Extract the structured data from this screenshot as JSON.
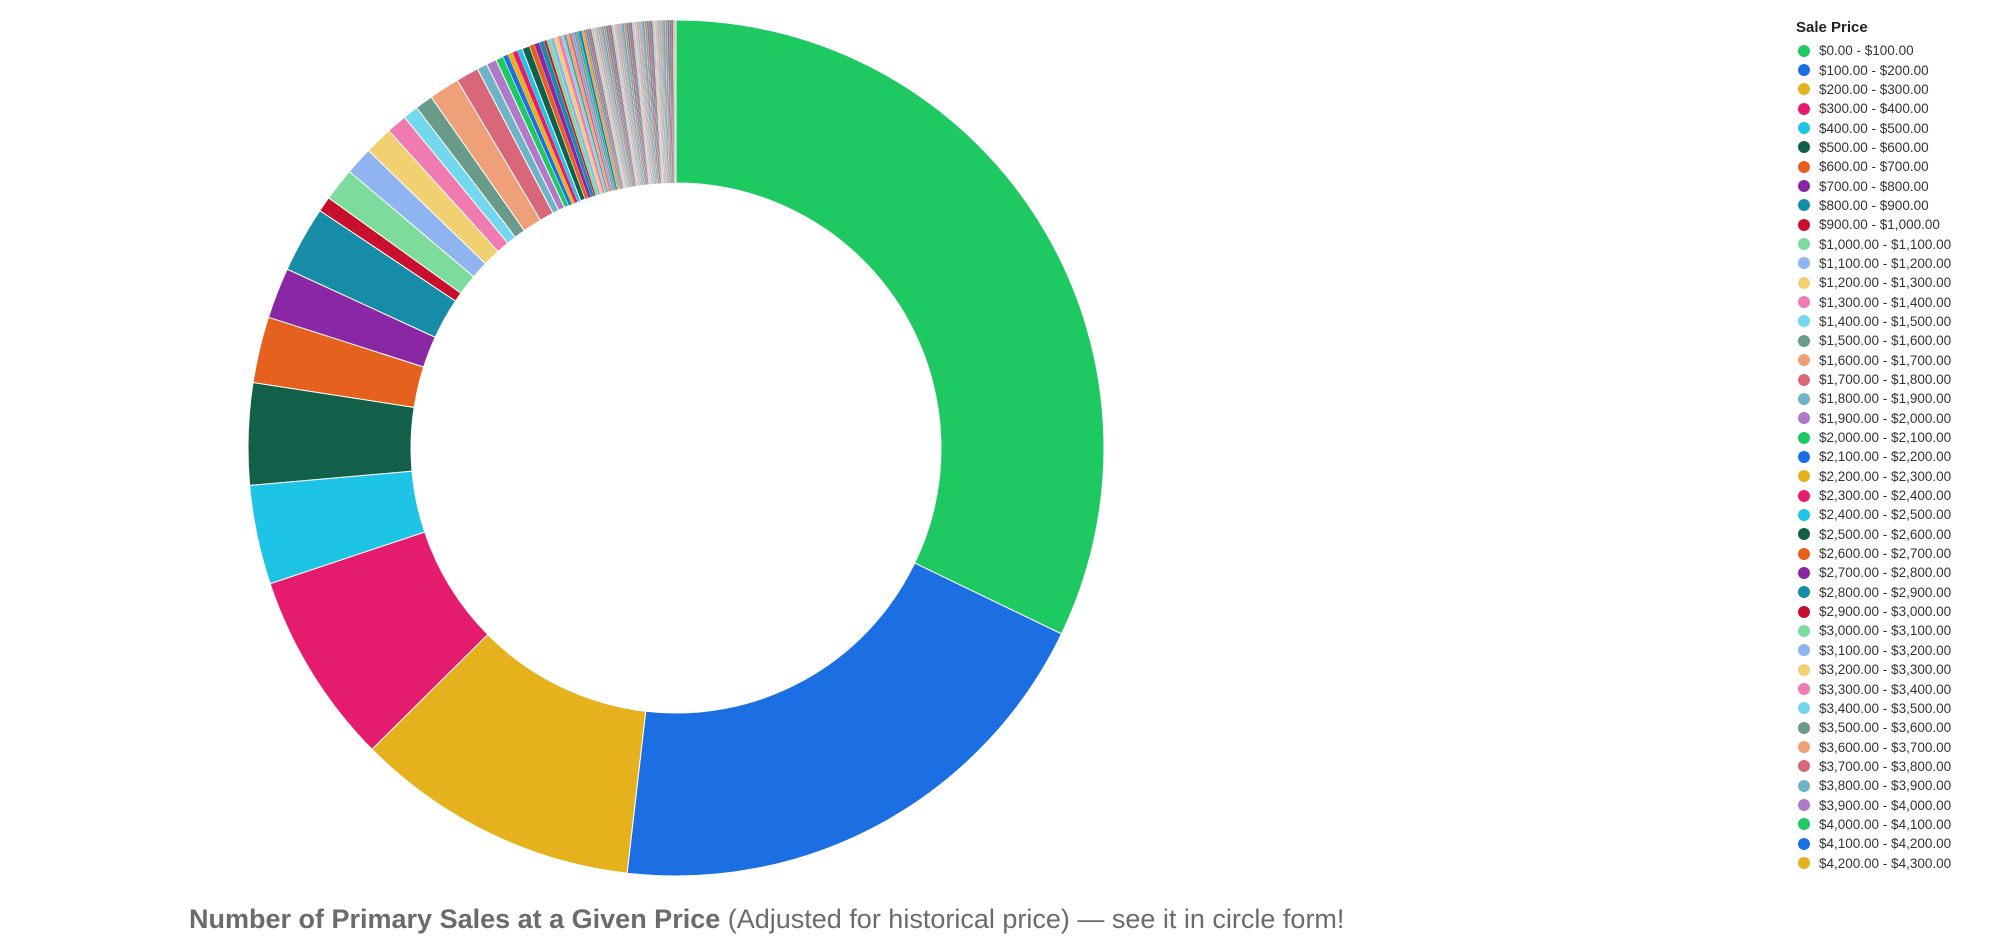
{
  "chart_data": {
    "type": "pie",
    "donut": true,
    "legend_title": "Sale Price",
    "legend_placement": "right",
    "categories": [
      "$0.00 - $100.00",
      "$100.00 - $200.00",
      "$200.00 - $300.00",
      "$300.00 - $400.00",
      "$400.00 - $500.00",
      "$500.00 - $600.00",
      "$600.00 - $700.00",
      "$700.00 - $800.00",
      "$800.00 - $900.00",
      "$900.00 - $1,000.00",
      "$1,000.00 - $1,100.00",
      "$1,100.00 - $1,200.00",
      "$1,200.00 - $1,300.00",
      "$1,300.00 - $1,400.00",
      "$1,400.00 - $1,500.00",
      "$1,500.00 - $1,600.00",
      "$1,600.00 - $1,700.00",
      "$1,700.00 - $1,800.00",
      "$1,800.00 - $1,900.00",
      "$1,900.00 - $2,000.00",
      "$2,000.00 - $2,100.00",
      "$2,100.00 - $2,200.00",
      "$2,200.00 - $2,300.00",
      "$2,300.00 - $2,400.00",
      "$2,400.00 - $2,500.00",
      "$2,500.00 - $2,600.00",
      "$2,600.00 - $2,700.00",
      "$2,700.00 - $2,800.00",
      "$2,800.00 - $2,900.00",
      "$2,900.00 - $3,000.00",
      "$3,000.00 - $3,100.00",
      "$3,100.00 - $3,200.00",
      "$3,200.00 - $3,300.00",
      "$3,300.00 - $3,400.00",
      "$3,400.00 - $3,500.00",
      "$3,500.00 - $3,600.00",
      "$3,600.00 - $3,700.00",
      "$3,700.00 - $3,800.00",
      "$3,800.00 - $3,900.00",
      "$3,900.00 - $4,000.00",
      "$4,000.00 - $4,100.00",
      "$4,100.00 - $4,200.00",
      "$4,200.00 - $4,300.00"
    ],
    "values": [
      33.5,
      20.5,
      11.2,
      7.6,
      3.9,
      4.0,
      2.6,
      2.0,
      2.6,
      0.6,
      1.3,
      1.1,
      1.1,
      0.8,
      0.6,
      0.7,
      1.2,
      0.9,
      0.4,
      0.4,
      0.3,
      0.2,
      0.2,
      0.2,
      0.2,
      0.3,
      0.2,
      0.2,
      0.2,
      0.1,
      0.15,
      0.15,
      0.15,
      0.15,
      0.1,
      0.1,
      0.1,
      0.1,
      0.1,
      0.1,
      0.1,
      0.1,
      0.1
    ],
    "tail_slices": 90,
    "tail_value": 0.04,
    "colors": [
      "#1ec962",
      "#1b6fe3",
      "#e5b11d",
      "#e51c6e",
      "#1dc4e6",
      "#13604a",
      "#e5611d",
      "#8a27a5",
      "#168ca6",
      "#c8102e",
      "#7ddc9c",
      "#8fb4f0",
      "#f0d070",
      "#f07bb0",
      "#72d8ee",
      "#6a9a8a",
      "#f0a078",
      "#d8677a",
      "#6fb3c8",
      "#b07ac8"
    ]
  },
  "caption": {
    "bold": "Number of Primary Sales at a Given Price",
    "rest": " (Adjusted for historical price) — see it in circle form!"
  }
}
